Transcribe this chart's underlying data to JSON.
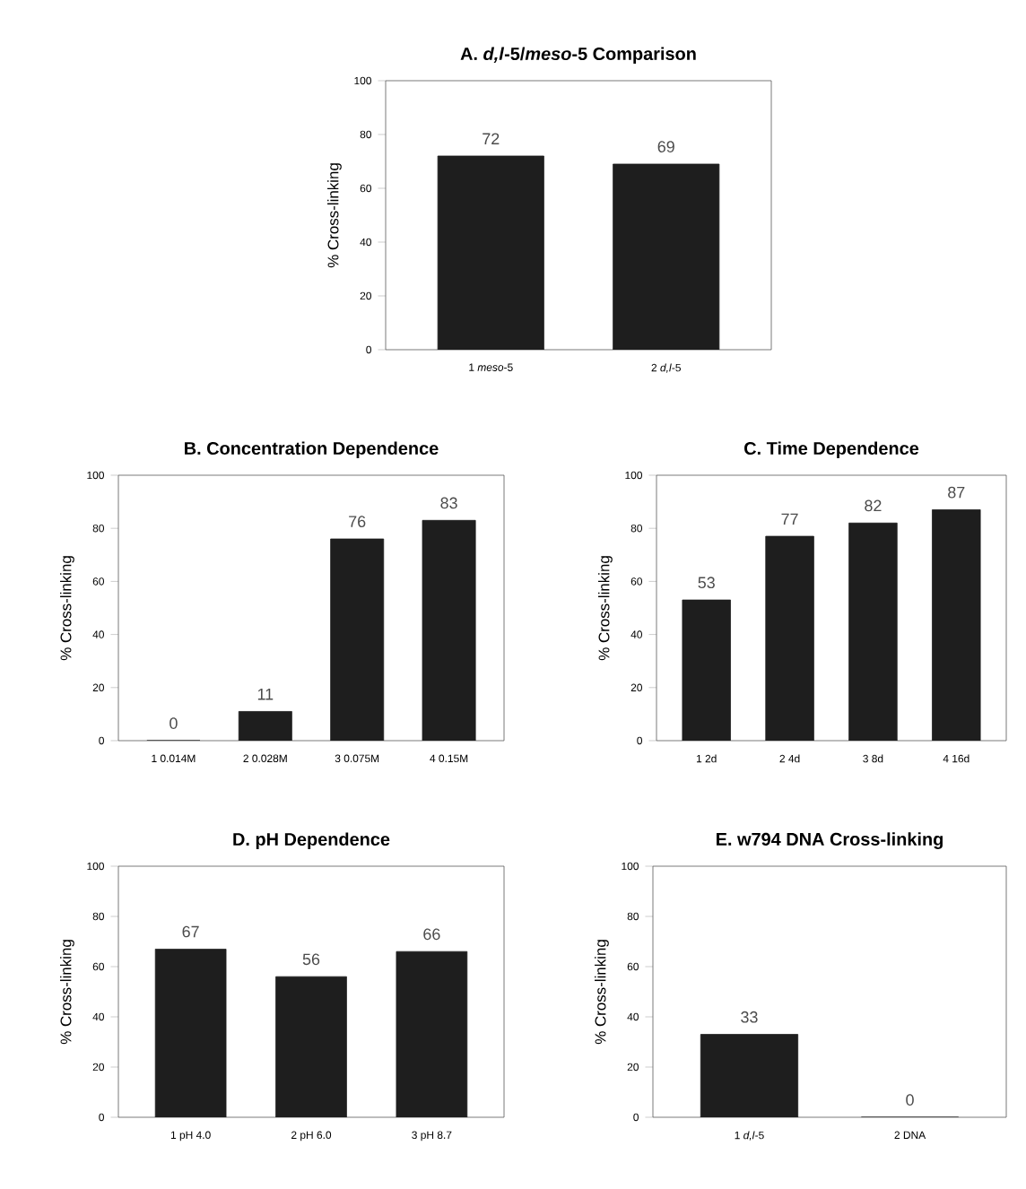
{
  "chart_data": [
    {
      "type": "bar",
      "title": "A. *d,l*-5/*meso*-5 Comparison",
      "ylabel": "% Cross-linking",
      "categories": [
        "1 *meso*-5",
        "2 *d,l*-5"
      ],
      "values": [
        72,
        69
      ],
      "color": "#1e1e1e",
      "ylim": [
        0,
        100
      ],
      "yticks": [
        0,
        20,
        40,
        60,
        80,
        100
      ],
      "data_labels": true
    },
    {
      "type": "bar",
      "title": "B. Concentration Dependence",
      "ylabel": "% Cross-linking",
      "categories": [
        "1 0.014M",
        "2 0.028M",
        "3 0.075M",
        "4 0.15M"
      ],
      "values": [
        0,
        11,
        76,
        83
      ],
      "color": "#1e1e1e",
      "ylim": [
        0,
        100
      ],
      "yticks": [
        0,
        20,
        40,
        60,
        80,
        100
      ],
      "data_labels": true
    },
    {
      "type": "bar",
      "title": "C. Time Dependence",
      "ylabel": "% Cross-linking",
      "categories": [
        "1 2d",
        "2 4d",
        "3 8d",
        "4 16d"
      ],
      "values": [
        53,
        77,
        82,
        87
      ],
      "color": "#1e1e1e",
      "ylim": [
        0,
        100
      ],
      "yticks": [
        0,
        20,
        40,
        60,
        80,
        100
      ],
      "data_labels": true
    },
    {
      "type": "bar",
      "title": "D. pH Dependence",
      "ylabel": "% Cross-linking",
      "categories": [
        "1 pH 4.0",
        "2 pH 6.0",
        "3 pH 8.7"
      ],
      "values": [
        67,
        56,
        66
      ],
      "color": "#1e1e1e",
      "ylim": [
        0,
        100
      ],
      "yticks": [
        0,
        20,
        40,
        60,
        80,
        100
      ],
      "data_labels": true
    },
    {
      "type": "bar",
      "title": "E. w794 DNA Cross-linking",
      "ylabel": "% Cross-linking",
      "categories": [
        "1 *d,l*-5",
        "2 DNA"
      ],
      "values": [
        33,
        0
      ],
      "color": "#1e1e1e",
      "ylim": [
        0,
        100
      ],
      "yticks": [
        0,
        20,
        40,
        60,
        80,
        100
      ],
      "data_labels": true
    }
  ]
}
